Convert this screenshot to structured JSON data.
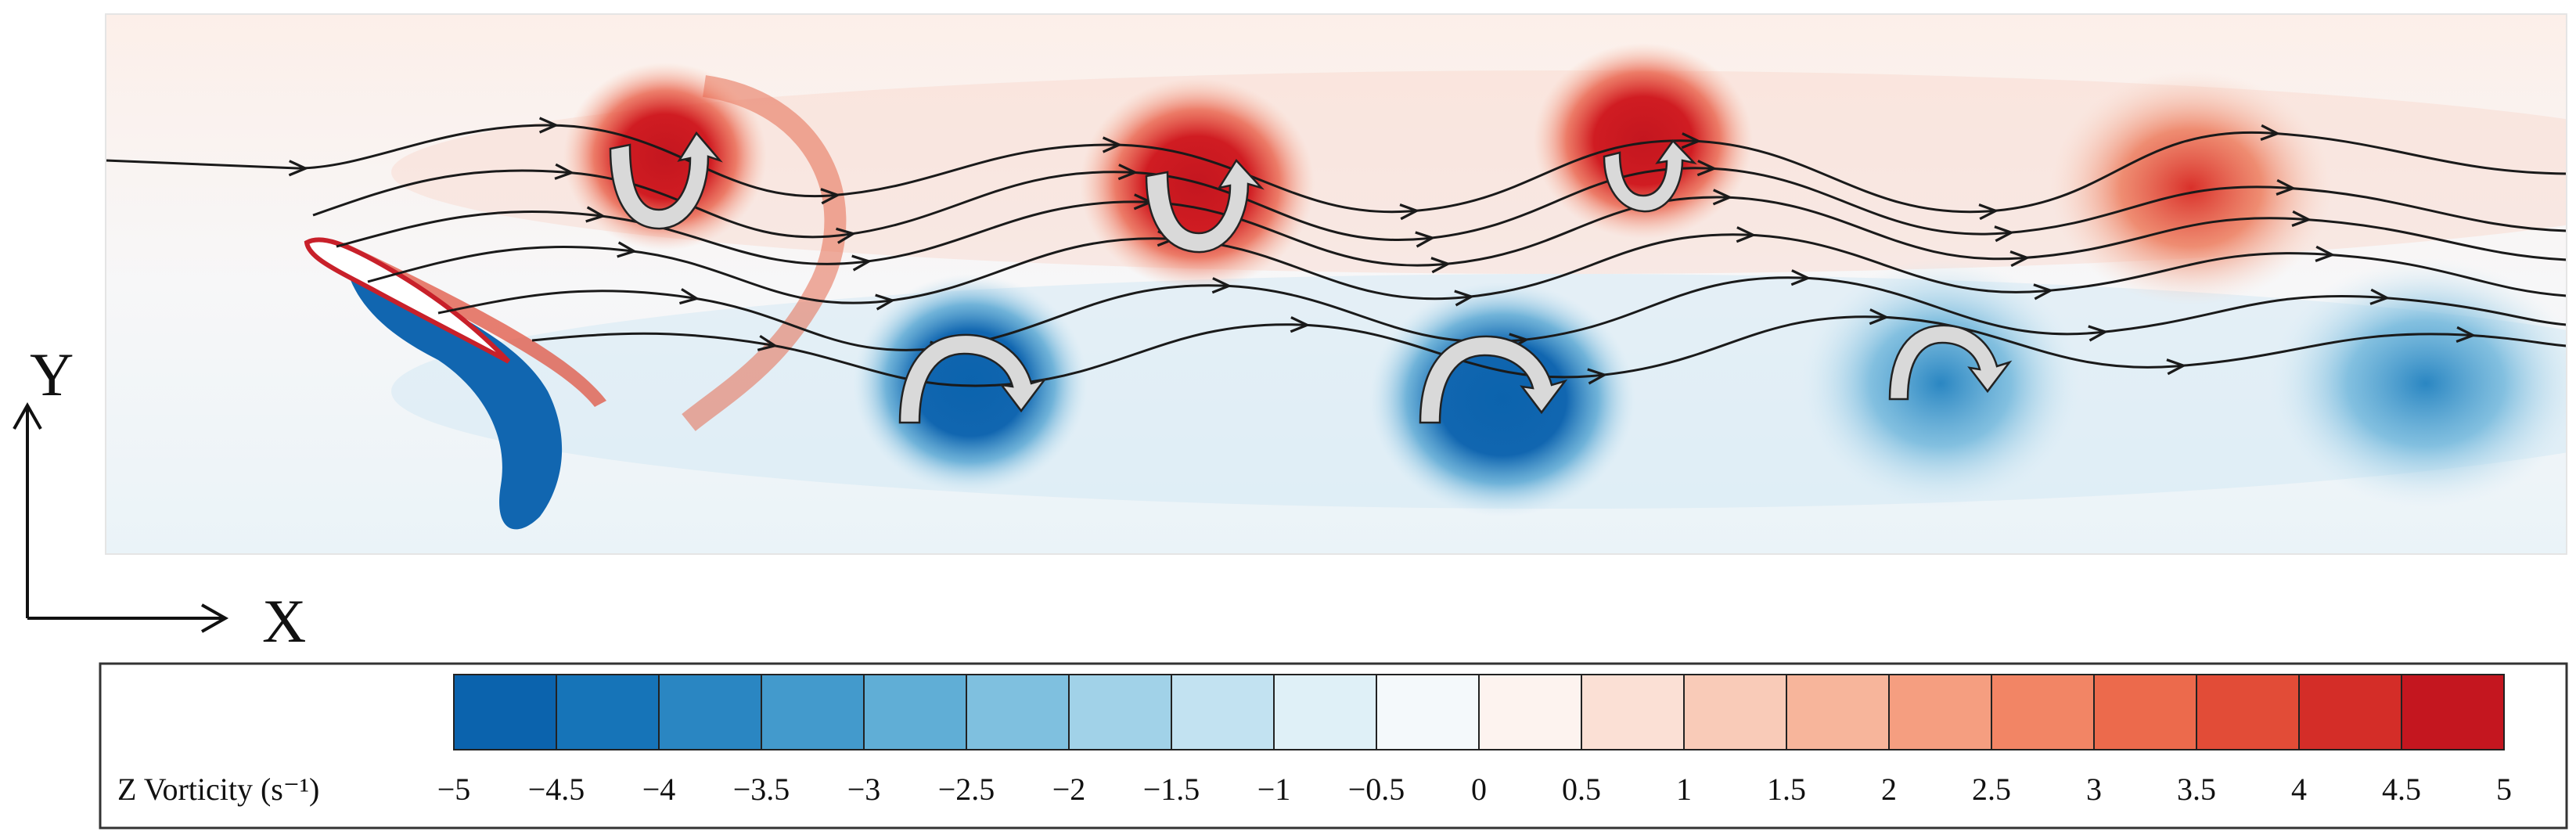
{
  "axes": {
    "x_label": "X",
    "y_label": "Y"
  },
  "colorbar": {
    "title": "Z Vorticity (s⁻¹)",
    "min": -5,
    "max": 5,
    "ticks": [
      "−5",
      "−4.5",
      "−4",
      "−3.5",
      "−3",
      "−2.5",
      "−2",
      "−1.5",
      "−1",
      "−0.5",
      "0",
      "0.5",
      "1",
      "1.5",
      "2",
      "2.5",
      "3",
      "3.5",
      "4",
      "4.5",
      "5"
    ],
    "colors": [
      "#0b63ad",
      "#1674b8",
      "#2a86c2",
      "#439acc",
      "#60aed6",
      "#7fc0df",
      "#a1d2e8",
      "#c2e2f1",
      "#dff0f7",
      "#f4f9fb",
      "#fdf3ef",
      "#fbe0d5",
      "#f9cbb8",
      "#f7b59b",
      "#f59e80",
      "#f28565",
      "#ec6a4c",
      "#e24c37",
      "#d42d28",
      "#c4161f"
    ]
  },
  "vortices": [
    {
      "sign": "positive",
      "rotation": "counterclockwise"
    },
    {
      "sign": "negative",
      "rotation": "clockwise"
    },
    {
      "sign": "positive",
      "rotation": "counterclockwise"
    },
    {
      "sign": "negative",
      "rotation": "clockwise"
    },
    {
      "sign": "positive",
      "rotation": "counterclockwise"
    },
    {
      "sign": "negative",
      "rotation": "clockwise"
    },
    {
      "sign": "positive",
      "rotation": "counterclockwise"
    },
    {
      "sign": "negative",
      "rotation": "clockwise"
    }
  ],
  "colors": {
    "positive": "#d01c22",
    "negative": "#1166b0",
    "streamline": "#1a1a1a"
  }
}
